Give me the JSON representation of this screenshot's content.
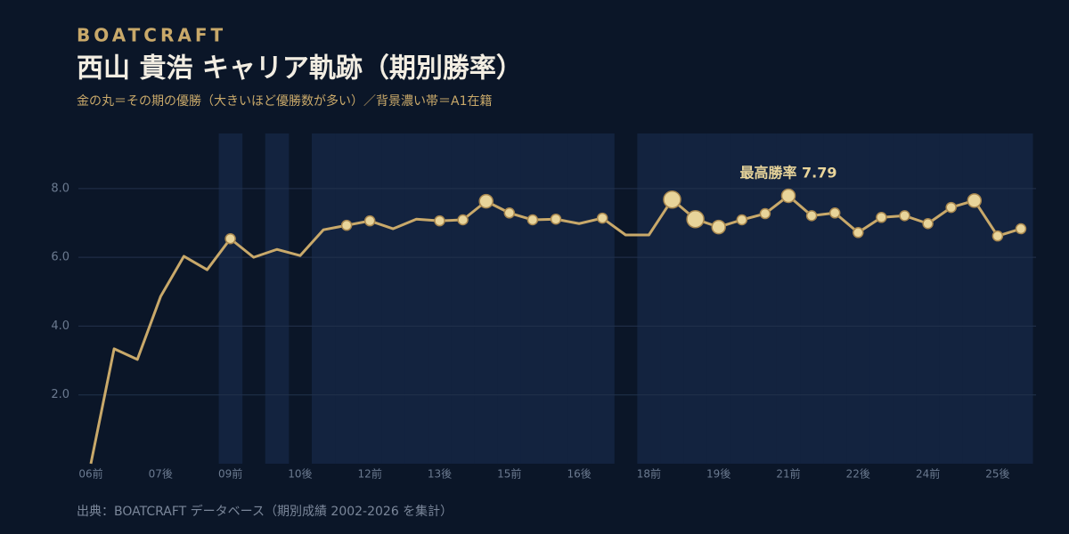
{
  "chart_data": {
    "type": "line",
    "brand": "BOATCRAFT",
    "title": "西山 貴浩 キャリア軌跡（期別勝率）",
    "subtitle": "金の丸＝その期の優勝（大きいほど優勝数が多い）／背景濃い帯＝A1在籍",
    "source": "出典：BOATCRAFT データベース（期別成績 2002-2026 を集計）",
    "annotation": "最高勝率 7.79",
    "categories": [
      "06前",
      null,
      null,
      "07後",
      null,
      null,
      "09前",
      null,
      null,
      "10後",
      null,
      null,
      "12前",
      null,
      null,
      "13後",
      null,
      null,
      "15前",
      null,
      null,
      "16後",
      null,
      null,
      "18前",
      null,
      null,
      "19後",
      null,
      null,
      "21前",
      null,
      null,
      "22後",
      null,
      null,
      "24前",
      null,
      null,
      "25後",
      null
    ],
    "series": [
      {
        "name": "勝率",
        "color": "#c9a96a",
        "values": [
          0,
          3.34,
          3.03,
          4.86,
          6.03,
          5.64,
          6.54,
          6.0,
          6.23,
          6.05,
          6.8,
          6.93,
          7.06,
          6.83,
          7.11,
          7.06,
          7.09,
          7.63,
          7.29,
          7.09,
          7.11,
          6.98,
          7.14,
          6.65,
          6.65,
          7.68,
          7.11,
          6.88,
          7.09,
          7.27,
          7.79,
          7.21,
          7.29,
          6.72,
          7.16,
          7.21,
          6.98,
          7.45,
          7.65,
          6.62,
          6.83
        ]
      },
      {
        "name": "優勝",
        "color": "#e8d49a",
        "values": [
          0,
          0,
          0,
          0,
          0,
          0,
          1,
          0,
          0,
          0,
          0,
          1,
          1,
          0,
          0,
          1,
          1,
          2,
          1,
          1,
          1,
          0,
          1,
          0,
          0,
          3,
          3,
          2,
          1,
          1,
          2,
          1,
          1,
          1,
          1,
          1,
          1,
          1,
          2,
          1,
          1
        ]
      }
    ],
    "a1": [
      false,
      false,
      false,
      false,
      false,
      false,
      true,
      false,
      true,
      false,
      true,
      true,
      true,
      true,
      true,
      true,
      true,
      true,
      true,
      true,
      true,
      true,
      true,
      false,
      true,
      true,
      true,
      true,
      true,
      true,
      true,
      true,
      true,
      true,
      true,
      true,
      true,
      true,
      true,
      true,
      true
    ],
    "band_color": "#13233f",
    "ylim": [
      0,
      9.6
    ],
    "yticks": [
      {
        "value": 2,
        "label": "2.0"
      },
      {
        "value": 4,
        "label": "4.0"
      },
      {
        "value": 6,
        "label": "6.0"
      },
      {
        "value": 8,
        "label": "8.0"
      }
    ],
    "grid": true
  }
}
